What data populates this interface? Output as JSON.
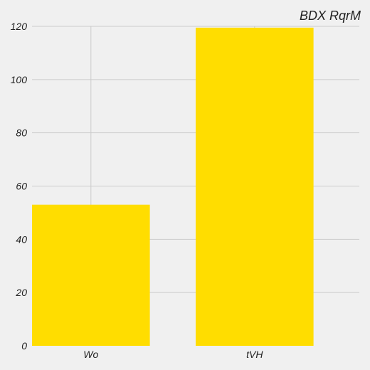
{
  "chart_data": {
    "type": "bar",
    "title": "BDX RqrM",
    "categories": [
      "Wo",
      "tVH"
    ],
    "values": [
      53,
      119.5
    ],
    "ylim": [
      0,
      120
    ],
    "yticks": [
      0,
      20,
      40,
      60,
      80,
      100,
      120
    ],
    "xlabel": "",
    "ylabel": "",
    "grid": true,
    "bar_color": "#ffdd00",
    "background": "#f0f0f0",
    "grid_color": "#cbcbcb"
  }
}
